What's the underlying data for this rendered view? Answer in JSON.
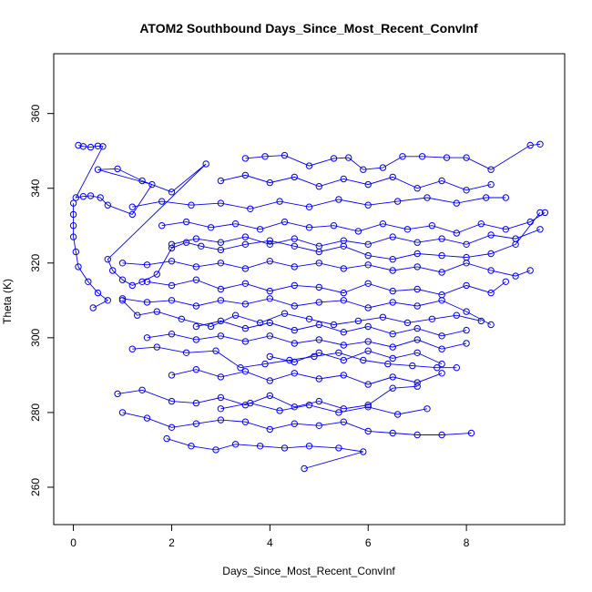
{
  "chart_data": {
    "type": "scatter",
    "title": "ATOM2 Southbound Days_Since_Most_Recent_ConvInf",
    "xlabel": "Days_Since_Most_Recent_ConvInf",
    "ylabel": "Theta (K)",
    "xlim": [
      -0.4,
      10.0
    ],
    "ylim": [
      250,
      376
    ],
    "x_ticks": [
      0,
      2,
      4,
      6,
      8
    ],
    "y_ticks": [
      260,
      280,
      300,
      320,
      340,
      360
    ],
    "grid": false,
    "legend": "none",
    "color": "#0000ff",
    "point_style": "open-circle",
    "lines_connecting_points": true,
    "series": [
      {
        "points": [
          [
            0.1,
            351.5
          ],
          [
            0.2,
            351.2
          ],
          [
            0.35,
            351.0
          ],
          [
            0.5,
            351.3
          ],
          [
            0.6,
            351.2
          ],
          [
            0.05,
            337.5
          ],
          [
            0.2,
            337.8
          ],
          [
            0.35,
            338.0
          ],
          [
            0.55,
            337.5
          ],
          [
            0.7,
            335.5
          ],
          [
            1.2,
            333.0
          ],
          [
            1.6,
            341.0
          ],
          [
            0.5,
            345.0
          ],
          [
            0.9,
            345.2
          ],
          [
            1.4,
            342.0
          ],
          [
            2.0,
            339.0
          ],
          [
            2.7,
            346.5
          ],
          [
            0.7,
            321.0
          ],
          [
            0.8,
            318.0
          ],
          [
            1.0,
            315.5
          ],
          [
            1.2,
            314.0
          ],
          [
            1.4,
            315.0
          ],
          [
            1.7,
            317.0
          ],
          [
            2.0,
            324.0
          ],
          [
            2.3,
            325.5
          ],
          [
            2.6,
            324.5
          ],
          [
            3.0,
            323.5
          ],
          [
            3.5,
            325.0
          ],
          [
            4.0,
            326.0
          ],
          [
            4.5,
            324.5
          ],
          [
            5.0,
            323.0
          ],
          [
            5.5,
            324.5
          ],
          [
            6.0,
            322.0
          ],
          [
            6.5,
            321.0
          ],
          [
            7.0,
            322.5
          ],
          [
            7.5,
            322.0
          ],
          [
            8.0,
            321.5
          ],
          [
            8.5,
            322.5
          ],
          [
            9.0,
            325.0
          ],
          [
            9.5,
            333.5
          ]
        ]
      },
      {
        "points": [
          [
            3.5,
            348.0
          ],
          [
            3.9,
            348.5
          ],
          [
            4.3,
            348.8
          ],
          [
            4.8,
            346.0
          ],
          [
            5.3,
            348.0
          ],
          [
            5.6,
            348.2
          ],
          [
            5.9,
            345.0
          ],
          [
            6.3,
            345.5
          ],
          [
            6.7,
            348.5
          ],
          [
            7.1,
            348.5
          ],
          [
            7.6,
            348.2
          ],
          [
            8.0,
            348.2
          ],
          [
            8.5,
            345.0
          ],
          [
            9.3,
            351.5
          ],
          [
            9.5,
            351.8
          ]
        ]
      },
      {
        "points": [
          [
            0.0,
            336.0
          ],
          [
            0.0,
            333.0
          ],
          [
            0.0,
            330.0
          ],
          [
            0.0,
            327.0
          ],
          [
            0.05,
            323.0
          ],
          [
            0.1,
            319.0
          ],
          [
            0.3,
            315.0
          ],
          [
            0.5,
            312.0
          ],
          [
            0.7,
            310.0
          ],
          [
            0.4,
            308.0
          ]
        ]
      },
      {
        "points": [
          [
            1.0,
            310.0
          ],
          [
            1.3,
            306.0
          ],
          [
            1.7,
            307.0
          ],
          [
            2.2,
            305.0
          ],
          [
            2.8,
            303.0
          ],
          [
            3.3,
            306.0
          ],
          [
            3.8,
            304.0
          ],
          [
            4.3,
            306.5
          ],
          [
            4.8,
            305.0
          ],
          [
            5.3,
            303.5
          ],
          [
            5.8,
            304.5
          ],
          [
            6.3,
            305.5
          ],
          [
            6.8,
            304.0
          ],
          [
            7.3,
            305.0
          ],
          [
            7.8,
            306.0
          ],
          [
            8.3,
            304.5
          ]
        ]
      },
      {
        "points": [
          [
            1.2,
            297.0
          ],
          [
            1.7,
            297.5
          ],
          [
            2.3,
            296.0
          ],
          [
            2.9,
            296.5
          ],
          [
            3.4,
            292.0
          ],
          [
            3.9,
            293.0
          ],
          [
            4.4,
            294.0
          ],
          [
            4.9,
            295.0
          ],
          [
            5.4,
            296.0
          ],
          [
            5.9,
            294.0
          ],
          [
            6.4,
            293.0
          ],
          [
            6.9,
            292.5
          ],
          [
            7.4,
            292.0
          ],
          [
            7.8,
            292.0
          ]
        ]
      },
      {
        "points": [
          [
            0.9,
            285.0
          ],
          [
            1.4,
            286.0
          ],
          [
            2.0,
            283.0
          ],
          [
            2.5,
            282.5
          ],
          [
            3.0,
            284.0
          ],
          [
            3.5,
            282.0
          ],
          [
            4.0,
            284.5
          ],
          [
            4.5,
            281.5
          ],
          [
            5.0,
            283.0
          ],
          [
            5.5,
            281.0
          ],
          [
            6.0,
            282.0
          ],
          [
            6.5,
            286.5
          ],
          [
            7.0,
            287.0
          ]
        ]
      },
      {
        "points": [
          [
            1.0,
            280.0
          ],
          [
            1.5,
            278.5
          ],
          [
            2.0,
            276.0
          ],
          [
            2.5,
            277.0
          ],
          [
            3.0,
            278.0
          ],
          [
            3.5,
            277.5
          ],
          [
            4.0,
            275.5
          ],
          [
            4.5,
            277.0
          ],
          [
            5.0,
            276.5
          ],
          [
            5.5,
            277.5
          ],
          [
            6.0,
            275.0
          ],
          [
            6.5,
            274.5
          ],
          [
            7.0,
            274.0
          ],
          [
            7.5,
            274.0
          ],
          [
            8.1,
            274.5
          ]
        ]
      },
      {
        "points": [
          [
            1.9,
            273.0
          ],
          [
            2.4,
            271.0
          ],
          [
            2.9,
            270.0
          ],
          [
            3.3,
            271.5
          ],
          [
            3.8,
            271.0
          ],
          [
            4.3,
            270.5
          ],
          [
            4.8,
            271.0
          ],
          [
            5.4,
            270.5
          ],
          [
            5.9,
            269.5
          ],
          [
            4.7,
            265.0
          ]
        ]
      },
      {
        "points": [
          [
            1.0,
            320.0
          ],
          [
            1.5,
            319.5
          ],
          [
            2.0,
            320.5
          ],
          [
            2.5,
            319.0
          ],
          [
            3.0,
            320.0
          ],
          [
            3.5,
            318.5
          ],
          [
            4.0,
            320.5
          ],
          [
            4.5,
            319.0
          ],
          [
            5.0,
            320.0
          ],
          [
            5.5,
            318.5
          ],
          [
            6.0,
            319.5
          ],
          [
            6.5,
            318.0
          ],
          [
            7.0,
            319.0
          ],
          [
            7.5,
            317.5
          ],
          [
            8.0,
            320.0
          ],
          [
            8.5,
            318.0
          ],
          [
            9.0,
            316.5
          ],
          [
            9.3,
            318.0
          ]
        ]
      },
      {
        "points": [
          [
            1.5,
            315.0
          ],
          [
            2.0,
            314.0
          ],
          [
            2.5,
            315.5
          ],
          [
            3.0,
            313.0
          ],
          [
            3.5,
            314.5
          ],
          [
            4.0,
            312.5
          ],
          [
            4.5,
            314.0
          ],
          [
            5.0,
            313.5
          ],
          [
            5.5,
            312.0
          ],
          [
            6.0,
            314.5
          ],
          [
            6.5,
            312.5
          ],
          [
            7.0,
            313.0
          ],
          [
            7.5,
            311.5
          ],
          [
            8.0,
            314.0
          ],
          [
            8.5,
            312.0
          ],
          [
            8.8,
            315.0
          ]
        ]
      },
      {
        "points": [
          [
            1.0,
            310.5
          ],
          [
            1.5,
            309.5
          ],
          [
            2.0,
            310.0
          ],
          [
            2.5,
            308.5
          ],
          [
            3.0,
            310.0
          ],
          [
            3.5,
            309.0
          ],
          [
            4.0,
            310.5
          ],
          [
            4.5,
            308.5
          ],
          [
            5.0,
            309.5
          ],
          [
            5.5,
            310.0
          ],
          [
            6.0,
            308.0
          ],
          [
            6.5,
            309.5
          ],
          [
            7.0,
            308.5
          ],
          [
            7.5,
            310.0
          ],
          [
            8.0,
            307.0
          ],
          [
            8.5,
            303.5
          ]
        ]
      },
      {
        "points": [
          [
            1.5,
            300.0
          ],
          [
            2.0,
            301.0
          ],
          [
            2.5,
            299.5
          ],
          [
            3.0,
            300.5
          ],
          [
            3.5,
            299.0
          ],
          [
            4.0,
            300.5
          ],
          [
            4.5,
            298.5
          ],
          [
            5.0,
            299.5
          ],
          [
            5.5,
            298.0
          ],
          [
            6.0,
            299.0
          ],
          [
            6.5,
            297.5
          ],
          [
            7.0,
            299.5
          ],
          [
            7.5,
            297.0
          ],
          [
            8.0,
            298.5
          ]
        ]
      },
      {
        "points": [
          [
            2.0,
            290.0
          ],
          [
            2.5,
            291.5
          ],
          [
            3.0,
            289.5
          ],
          [
            3.5,
            291.0
          ],
          [
            4.0,
            288.5
          ],
          [
            4.5,
            290.5
          ],
          [
            5.0,
            289.0
          ],
          [
            5.5,
            290.0
          ],
          [
            6.0,
            287.5
          ],
          [
            6.5,
            289.5
          ],
          [
            7.0,
            288.0
          ],
          [
            7.5,
            290.5
          ]
        ]
      },
      {
        "points": [
          [
            1.8,
            330.0
          ],
          [
            2.3,
            331.0
          ],
          [
            2.8,
            329.5
          ],
          [
            3.3,
            330.5
          ],
          [
            3.8,
            329.0
          ],
          [
            4.3,
            331.0
          ],
          [
            4.8,
            329.5
          ],
          [
            5.3,
            330.0
          ],
          [
            5.8,
            328.5
          ],
          [
            6.3,
            330.5
          ],
          [
            6.8,
            329.0
          ],
          [
            7.3,
            330.0
          ],
          [
            7.8,
            328.0
          ],
          [
            8.3,
            330.5
          ],
          [
            8.8,
            329.0
          ],
          [
            9.3,
            331.0
          ],
          [
            9.6,
            333.5
          ]
        ]
      },
      {
        "points": [
          [
            1.2,
            335.0
          ],
          [
            1.8,
            336.5
          ],
          [
            2.4,
            335.5
          ],
          [
            3.0,
            336.0
          ],
          [
            3.6,
            334.5
          ],
          [
            4.2,
            336.5
          ],
          [
            4.8,
            335.0
          ],
          [
            5.4,
            337.0
          ],
          [
            6.0,
            335.5
          ],
          [
            6.6,
            336.5
          ],
          [
            7.2,
            337.5
          ],
          [
            7.8,
            336.0
          ],
          [
            8.4,
            337.5
          ],
          [
            8.8,
            337.5
          ]
        ]
      },
      {
        "points": [
          [
            3.0,
            342.0
          ],
          [
            3.5,
            343.5
          ],
          [
            4.0,
            341.5
          ],
          [
            4.5,
            343.0
          ],
          [
            5.0,
            340.5
          ],
          [
            5.5,
            342.5
          ],
          [
            6.0,
            341.0
          ],
          [
            6.5,
            343.0
          ],
          [
            7.0,
            340.0
          ],
          [
            7.5,
            342.0
          ],
          [
            8.0,
            339.5
          ],
          [
            8.5,
            341.0
          ]
        ]
      },
      {
        "points": [
          [
            2.0,
            325.0
          ],
          [
            2.5,
            326.5
          ],
          [
            3.0,
            325.5
          ],
          [
            3.5,
            327.0
          ],
          [
            4.0,
            325.0
          ],
          [
            4.5,
            326.5
          ],
          [
            5.0,
            324.5
          ],
          [
            5.5,
            326.0
          ],
          [
            6.0,
            325.0
          ],
          [
            6.5,
            327.0
          ],
          [
            7.0,
            325.5
          ],
          [
            7.5,
            326.5
          ],
          [
            8.0,
            325.0
          ],
          [
            8.5,
            327.5
          ],
          [
            9.0,
            326.5
          ],
          [
            9.5,
            329.0
          ]
        ]
      },
      {
        "points": [
          [
            2.5,
            303.0
          ],
          [
            3.0,
            304.5
          ],
          [
            3.5,
            302.5
          ],
          [
            4.0,
            304.0
          ],
          [
            4.5,
            302.0
          ],
          [
            5.0,
            303.5
          ],
          [
            5.5,
            301.5
          ],
          [
            6.0,
            303.0
          ],
          [
            6.5,
            301.0
          ],
          [
            7.0,
            302.5
          ],
          [
            7.5,
            300.5
          ],
          [
            8.0,
            302.0
          ]
        ]
      },
      {
        "points": [
          [
            3.0,
            281.0
          ],
          [
            3.6,
            282.5
          ],
          [
            4.2,
            280.5
          ],
          [
            4.8,
            282.0
          ],
          [
            5.4,
            280.0
          ],
          [
            6.0,
            281.5
          ],
          [
            6.6,
            279.5
          ],
          [
            7.2,
            281.0
          ]
        ]
      },
      {
        "points": [
          [
            4.0,
            295.0
          ],
          [
            4.5,
            293.5
          ],
          [
            5.0,
            296.0
          ],
          [
            5.5,
            294.0
          ],
          [
            6.0,
            296.5
          ],
          [
            6.5,
            294.5
          ],
          [
            7.0,
            296.0
          ],
          [
            7.5,
            293.0
          ]
        ]
      }
    ]
  }
}
